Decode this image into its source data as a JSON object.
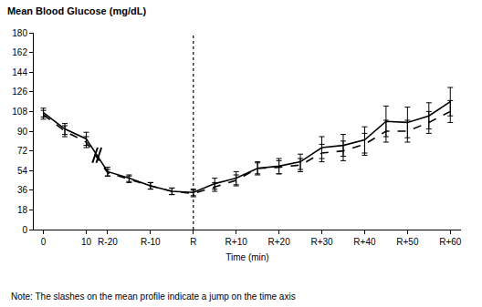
{
  "chart_data": {
    "type": "line",
    "title": "Mean Blood Glucose (mg/dL)",
    "x_label": "Time (min)",
    "note": "Note: The slashes on the mean profile indicate a jump on the time axis",
    "categories": [
      "0",
      null,
      "10",
      "R-20",
      null,
      "R-10",
      null,
      "R",
      null,
      "R+10",
      null,
      "R+20",
      null,
      "R+30",
      null,
      "R+40",
      null,
      "R+50",
      null,
      "R+60"
    ],
    "series": [
      {
        "color": "#000000",
        "line_style": "solid",
        "values": [
          107,
          92,
          83,
          53,
          47,
          40,
          35,
          34,
          42,
          47,
          56,
          58,
          62,
          75,
          77,
          82,
          99,
          98,
          104,
          117
        ],
        "error": [
          4,
          5,
          6,
          4,
          3,
          3,
          3,
          3,
          5,
          6,
          6,
          7,
          7,
          10,
          10,
          12,
          14,
          14,
          12,
          13
        ]
      },
      {
        "color": "#000000",
        "line_style": "dashed",
        "values": [
          105,
          90,
          80,
          52,
          46,
          40,
          35,
          33,
          39,
          45,
          56,
          57,
          59,
          70,
          72,
          78,
          90,
          90,
          98,
          108
        ],
        "error": [
          4,
          5,
          5,
          3,
          3,
          3,
          3,
          3,
          4,
          5,
          5,
          6,
          6,
          8,
          9,
          10,
          10,
          10,
          10,
          10
        ]
      }
    ],
    "ylim": [
      0,
      180
    ],
    "yticks": [
      0,
      18,
      36,
      54,
      72,
      90,
      108,
      126,
      144,
      162,
      180
    ],
    "grid": false
  }
}
